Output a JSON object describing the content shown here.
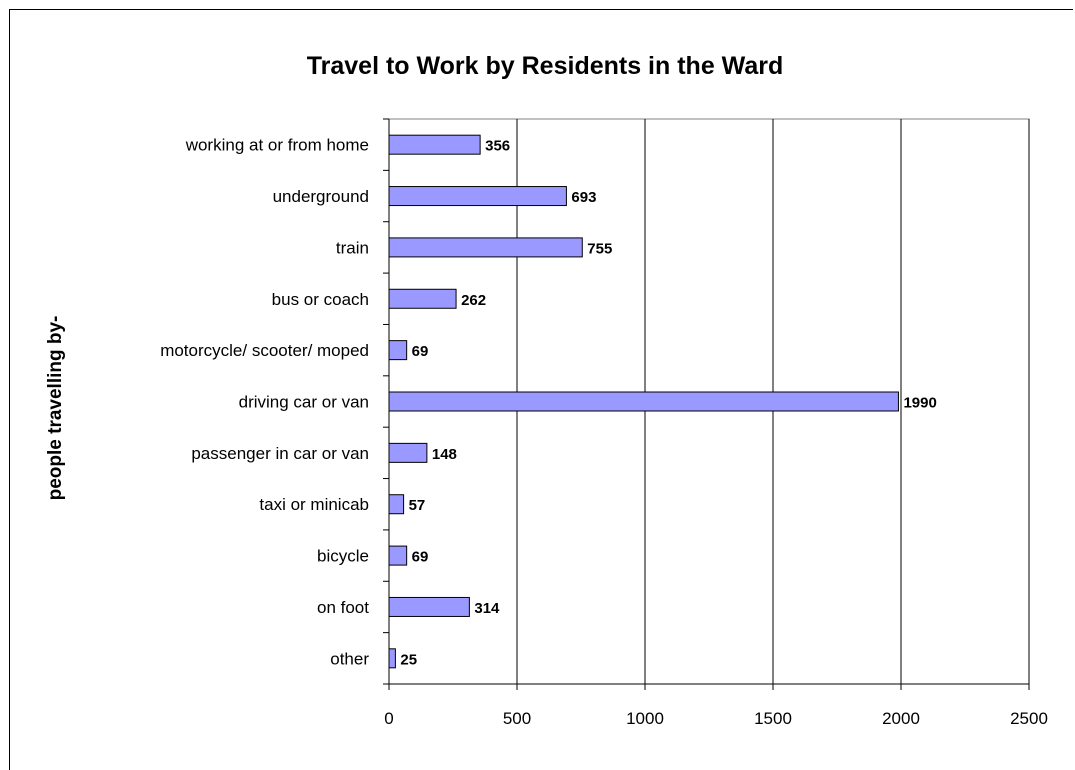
{
  "chart_data": {
    "type": "bar",
    "orientation": "horizontal",
    "title": "Travel to Work by Residents in the Ward",
    "xlabel": "",
    "ylabel": "people travelling by-",
    "categories": [
      "working at or from home",
      "underground",
      "train",
      "bus or coach",
      "motorcycle/ scooter/ moped",
      "driving car or van",
      "passenger in car or van",
      "taxi or minicab",
      "bicycle",
      "on foot",
      "other"
    ],
    "values": [
      356,
      693,
      755,
      262,
      69,
      1990,
      148,
      57,
      69,
      314,
      25
    ],
    "xlim": [
      0,
      2500
    ],
    "xticks": [
      0,
      500,
      1000,
      1500,
      2000,
      2500
    ],
    "grid": "vertical",
    "legend": "none",
    "colors": {
      "bar_fill": "#9999ff",
      "bar_stroke": "#000000",
      "grid": "#000000",
      "plot_border": "#808080"
    }
  }
}
